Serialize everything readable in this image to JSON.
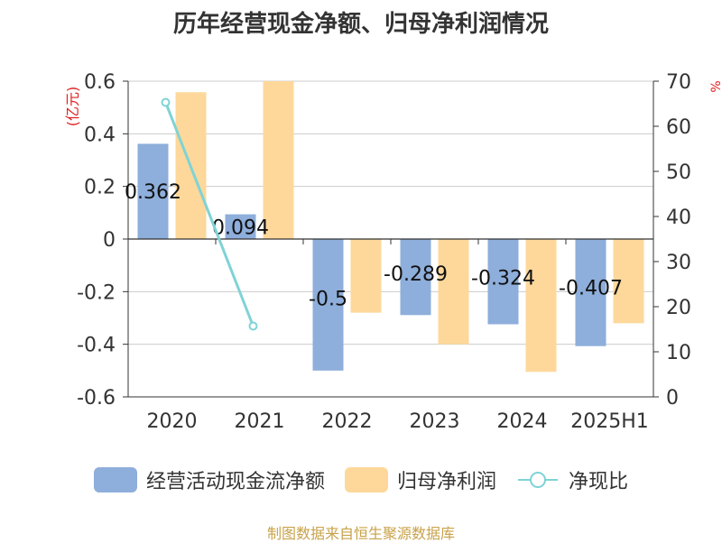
{
  "chart_data": {
    "type": "bar",
    "title": "历年经营现金净额、归母净利润情况",
    "categories": [
      "2020",
      "2021",
      "2022",
      "2023",
      "2024",
      "2025H1"
    ],
    "y_left": {
      "label": "(亿元)",
      "ticks": [
        "0.6",
        "0.4",
        "0.2",
        "0",
        "-0.2",
        "-0.4",
        "-0.6"
      ],
      "range": [
        -0.6,
        0.6
      ]
    },
    "y_right": {
      "label": "%",
      "ticks": [
        "70",
        "60",
        "50",
        "40",
        "30",
        "20",
        "10",
        "0"
      ],
      "range": [
        0,
        70
      ]
    },
    "series": [
      {
        "name": "经营活动现金流净额",
        "kind": "bar",
        "axis": "left",
        "color": "#8eaedb",
        "values": [
          0.362,
          0.094,
          -0.5,
          -0.289,
          -0.324,
          -0.407
        ],
        "labels": [
          "0.362",
          "0.094",
          "-0.5",
          "-0.289",
          "-0.324",
          "-0.407"
        ]
      },
      {
        "name": "归母净利润",
        "kind": "bar",
        "axis": "left",
        "color": "#fdd89a",
        "values": [
          0.558,
          0.6,
          -0.28,
          -0.4,
          -0.505,
          -0.32
        ]
      },
      {
        "name": "净现比",
        "kind": "line",
        "axis": "right",
        "color": "#7fd3d6",
        "values": [
          65.3,
          15.7,
          null,
          null,
          null,
          null
        ]
      }
    ],
    "grid": true,
    "legend_position": "bottom"
  },
  "source": "制图数据来自恒生聚源数据库"
}
